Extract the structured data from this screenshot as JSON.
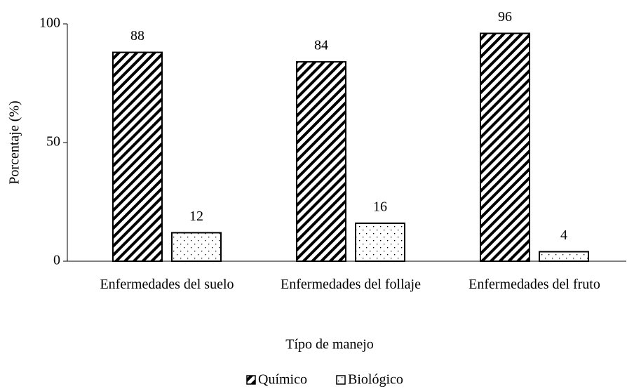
{
  "chart_data": {
    "type": "bar",
    "categories": [
      "Enfermedades del suelo",
      "Enfermedades del follaje",
      "Enfermedades del fruto"
    ],
    "series": [
      {
        "name": "Químico",
        "color": "#000000",
        "pattern": "hatch",
        "values": [
          88,
          84,
          96
        ]
      },
      {
        "name": "Biológico",
        "color": "#000000",
        "pattern": "dots",
        "values": [
          12,
          16,
          4
        ]
      }
    ],
    "y_label": "Porcentaje (%)",
    "x_label": "Típo de manejo",
    "ylim": [
      0,
      100
    ],
    "yticks": [
      0,
      50,
      100
    ],
    "grid": false,
    "legend": "bottom"
  }
}
